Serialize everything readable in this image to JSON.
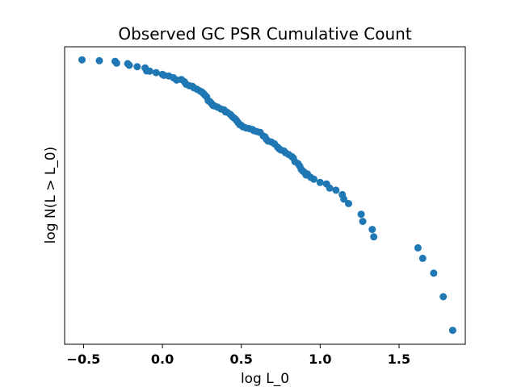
{
  "chart_data": {
    "type": "scatter",
    "title": "Observed GC PSR Cumulative Count",
    "xlabel": "log L_0",
    "ylabel": "log N(L > L_0)",
    "xlim": [
      -0.62,
      1.92
    ],
    "ylim": [
      0,
      1
    ],
    "x_ticks": [
      -0.5,
      0.0,
      0.5,
      1.0,
      1.5
    ],
    "x_tick_labels": [
      "−0.5",
      "0.0",
      "0.5",
      "1.0",
      "1.5"
    ],
    "y_ticks": [],
    "grid": false,
    "marker_color": "#1f77b4",
    "series": [
      {
        "x": [
          -0.51,
          -0.4,
          -0.3,
          -0.29,
          -0.22,
          -0.21,
          -0.16,
          -0.11,
          -0.1,
          -0.08,
          -0.04,
          0.0,
          0.01,
          0.04,
          0.07,
          0.09,
          0.12,
          0.14,
          0.15,
          0.17,
          0.19,
          0.2,
          0.22,
          0.24,
          0.25,
          0.26,
          0.27,
          0.28,
          0.29,
          0.3,
          0.31,
          0.32,
          0.33,
          0.35,
          0.37,
          0.39,
          0.4,
          0.41,
          0.43,
          0.44,
          0.45,
          0.46,
          0.47,
          0.48,
          0.49,
          0.5,
          0.51,
          0.53,
          0.55,
          0.57,
          0.58,
          0.6,
          0.62,
          0.64,
          0.65,
          0.66,
          0.67,
          0.69,
          0.71,
          0.73,
          0.74,
          0.75,
          0.77,
          0.78,
          0.8,
          0.82,
          0.83,
          0.84,
          0.86,
          0.87,
          0.88,
          0.89,
          0.9,
          0.91,
          0.92,
          0.94,
          0.96,
          1.0,
          1.04,
          1.06,
          1.1,
          1.14,
          1.15,
          1.18,
          1.26,
          1.27,
          1.33,
          1.34,
          1.62,
          1.65,
          1.72,
          1.78,
          1.84
        ],
        "y": [
          0.956,
          0.953,
          0.951,
          0.945,
          0.943,
          0.938,
          0.933,
          0.929,
          0.919,
          0.918,
          0.913,
          0.907,
          0.904,
          0.902,
          0.896,
          0.888,
          0.89,
          0.882,
          0.874,
          0.869,
          0.867,
          0.862,
          0.857,
          0.851,
          0.848,
          0.843,
          0.837,
          0.832,
          0.819,
          0.816,
          0.81,
          0.803,
          0.801,
          0.797,
          0.791,
          0.788,
          0.781,
          0.78,
          0.773,
          0.767,
          0.762,
          0.758,
          0.752,
          0.745,
          0.738,
          0.736,
          0.731,
          0.727,
          0.725,
          0.722,
          0.718,
          0.715,
          0.712,
          0.7,
          0.697,
          0.688,
          0.683,
          0.68,
          0.674,
          0.663,
          0.657,
          0.653,
          0.65,
          0.644,
          0.638,
          0.631,
          0.626,
          0.614,
          0.607,
          0.599,
          0.588,
          0.582,
          0.578,
          0.569,
          0.572,
          0.561,
          0.555,
          0.544,
          0.539,
          0.525,
          0.518,
          0.503,
          0.488,
          0.473,
          0.437,
          0.413,
          0.386,
          0.361,
          0.324,
          0.289,
          0.239,
          0.16,
          0.047
        ]
      }
    ]
  }
}
